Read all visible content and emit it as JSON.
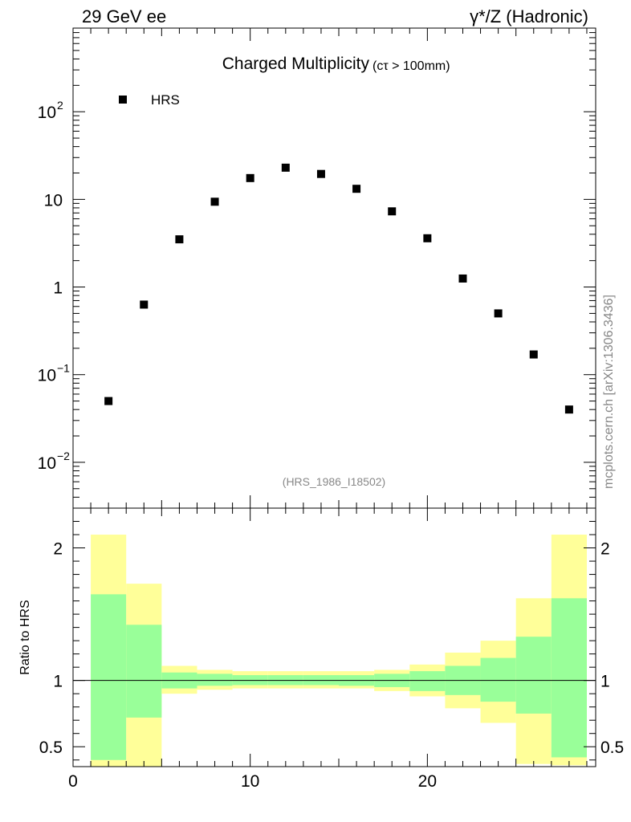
{
  "header": {
    "left_label": "29 GeV ee",
    "right_label": "γ*/Z (Hadronic)"
  },
  "side_label": "mcplots.cern.ch [arXiv:1306.3436]",
  "chart_data": [
    {
      "type": "scatter",
      "title": "Charged Multiplicity",
      "title_suffix": "(cτ > 100mm)",
      "yscale": "log",
      "xlim": [
        0,
        29.5
      ],
      "ylim": [
        0.003,
        900
      ],
      "ytick_labels": [
        {
          "value": 0.01,
          "base": "10",
          "exp": "−2"
        },
        {
          "value": 0.1,
          "base": "10",
          "exp": "−1"
        },
        {
          "value": 1,
          "base": "1",
          "exp": ""
        },
        {
          "value": 10,
          "base": "10",
          "exp": ""
        },
        {
          "value": 100,
          "base": "10",
          "exp": "2"
        }
      ],
      "legend": {
        "position": "top-left",
        "entries": [
          "HRS"
        ]
      },
      "watermark": "(HRS_1986_I18502)",
      "series": [
        {
          "name": "HRS",
          "marker": "square",
          "color": "#000000",
          "x": [
            2,
            4,
            6,
            8,
            10,
            12,
            14,
            16,
            18,
            20,
            22,
            24,
            26,
            28
          ],
          "y": [
            0.05,
            0.63,
            3.5,
            9.4,
            17.5,
            23,
            19.5,
            13.2,
            7.3,
            3.6,
            1.25,
            0.5,
            0.17,
            0.04
          ]
        }
      ]
    },
    {
      "type": "area",
      "ylabel": "Ratio to HRS",
      "xlim": [
        0,
        29.5
      ],
      "ylim": [
        0.35,
        2.3
      ],
      "xtick_labels": [
        "0",
        "10",
        "20"
      ],
      "ytick_labels": [
        "0.5",
        "1",
        "2"
      ],
      "reference_line": 1,
      "band_colors": {
        "inner": "#99ff99",
        "outer": "#ffff99"
      },
      "bins": [
        {
          "lo": 1,
          "hi": 3,
          "inner": [
            0.4,
            1.65
          ],
          "outer": [
            0.35,
            2.1
          ]
        },
        {
          "lo": 3,
          "hi": 5,
          "inner": [
            0.72,
            1.42
          ],
          "outer": [
            0.35,
            1.73
          ]
        },
        {
          "lo": 5,
          "hi": 7,
          "inner": [
            0.94,
            1.06
          ],
          "outer": [
            0.9,
            1.11
          ]
        },
        {
          "lo": 7,
          "hi": 9,
          "inner": [
            0.96,
            1.05
          ],
          "outer": [
            0.93,
            1.08
          ]
        },
        {
          "lo": 9,
          "hi": 11,
          "inner": [
            0.965,
            1.04
          ],
          "outer": [
            0.94,
            1.07
          ]
        },
        {
          "lo": 11,
          "hi": 13,
          "inner": [
            0.965,
            1.04
          ],
          "outer": [
            0.94,
            1.07
          ]
        },
        {
          "lo": 13,
          "hi": 15,
          "inner": [
            0.965,
            1.04
          ],
          "outer": [
            0.94,
            1.07
          ]
        },
        {
          "lo": 15,
          "hi": 17,
          "inner": [
            0.96,
            1.04
          ],
          "outer": [
            0.94,
            1.07
          ]
        },
        {
          "lo": 17,
          "hi": 19,
          "inner": [
            0.95,
            1.05
          ],
          "outer": [
            0.92,
            1.08
          ]
        },
        {
          "lo": 19,
          "hi": 21,
          "inner": [
            0.92,
            1.07
          ],
          "outer": [
            0.88,
            1.12
          ]
        },
        {
          "lo": 21,
          "hi": 23,
          "inner": [
            0.89,
            1.11
          ],
          "outer": [
            0.79,
            1.21
          ]
        },
        {
          "lo": 23,
          "hi": 25,
          "inner": [
            0.84,
            1.17
          ],
          "outer": [
            0.68,
            1.3
          ]
        },
        {
          "lo": 25,
          "hi": 27,
          "inner": [
            0.75,
            1.33
          ],
          "outer": [
            0.37,
            1.62
          ]
        },
        {
          "lo": 27,
          "hi": 29,
          "inner": [
            0.42,
            1.62
          ],
          "outer": [
            0.36,
            2.1
          ]
        }
      ]
    }
  ]
}
